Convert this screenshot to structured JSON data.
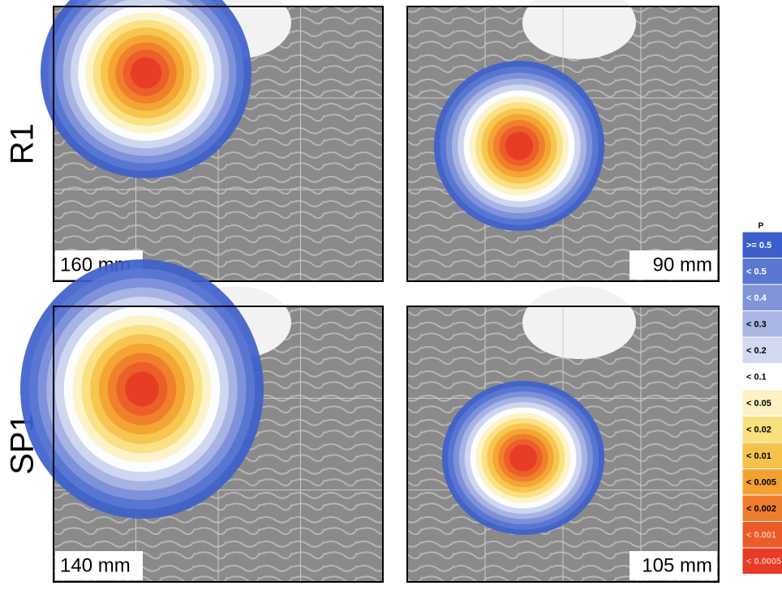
{
  "rows": [
    {
      "label": "R1",
      "panels": [
        {
          "depth": "160 mm"
        },
        {
          "depth": "90 mm"
        }
      ]
    },
    {
      "label": "SP1",
      "panels": [
        {
          "depth": "140 mm"
        },
        {
          "depth": "105 mm"
        }
      ]
    }
  ],
  "legend": {
    "title": "P",
    "items": [
      {
        "label": ">= 0.5",
        "color": "#3d5fcc"
      },
      {
        "label": "< 0.5",
        "color": "#5a78d2"
      },
      {
        "label": "< 0.4",
        "color": "#8194da"
      },
      {
        "label": "< 0.3",
        "color": "#aab6e4"
      },
      {
        "label": "< 0.2",
        "color": "#d3d9f0"
      },
      {
        "label": "< 0.1",
        "color": "#ffffff"
      },
      {
        "label": "< 0.05",
        "color": "#fdf2c4"
      },
      {
        "label": "< 0.02",
        "color": "#f9df7e"
      },
      {
        "label": "< 0.01",
        "color": "#f6c24c"
      },
      {
        "label": "< 0.005",
        "color": "#f3a232"
      },
      {
        "label": "< 0.002",
        "color": "#ef7d2b"
      },
      {
        "label": "< 0.001",
        "color": "#eb5b2a"
      },
      {
        "label": "< 0.0005",
        "color": "#e73b25"
      }
    ]
  }
}
